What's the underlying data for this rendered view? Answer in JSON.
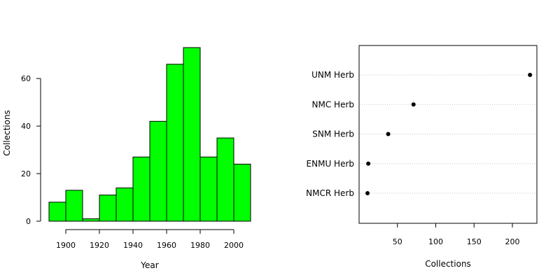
{
  "chart_data": [
    {
      "type": "bar",
      "subtype": "histogram",
      "xlabel": "Year",
      "ylabel": "Collections",
      "bins": [
        {
          "start": 1890,
          "end": 1900,
          "value": 8
        },
        {
          "start": 1900,
          "end": 1910,
          "value": 13
        },
        {
          "start": 1910,
          "end": 1920,
          "value": 1
        },
        {
          "start": 1920,
          "end": 1930,
          "value": 11
        },
        {
          "start": 1930,
          "end": 1940,
          "value": 14
        },
        {
          "start": 1940,
          "end": 1950,
          "value": 27
        },
        {
          "start": 1950,
          "end": 1960,
          "value": 42
        },
        {
          "start": 1960,
          "end": 1970,
          "value": 66
        },
        {
          "start": 1970,
          "end": 1980,
          "value": 73
        },
        {
          "start": 1980,
          "end": 1990,
          "value": 27
        },
        {
          "start": 1990,
          "end": 2000,
          "value": 35
        },
        {
          "start": 2000,
          "end": 2010,
          "value": 24
        }
      ],
      "xticks": [
        1900,
        1920,
        1940,
        1960,
        1980,
        2000
      ],
      "yticks": [
        0,
        20,
        40,
        60
      ],
      "xlim": [
        1890,
        2010
      ],
      "ylim": [
        0,
        73
      ],
      "bar_color": "#00ff00",
      "grid": false
    },
    {
      "type": "scatter",
      "subtype": "dotchart",
      "xlabel": "Collections",
      "categories": [
        "UNM Herb",
        "NMC Herb",
        "SNM Herb",
        "ENMU Herb",
        "NMCR Herb"
      ],
      "values": [
        223,
        71,
        38,
        12,
        11
      ],
      "xticks": [
        50,
        100,
        150,
        200
      ],
      "xlim": [
        0,
        232
      ],
      "point_color": "#000000",
      "grid": "horizontal dotted guides"
    }
  ]
}
